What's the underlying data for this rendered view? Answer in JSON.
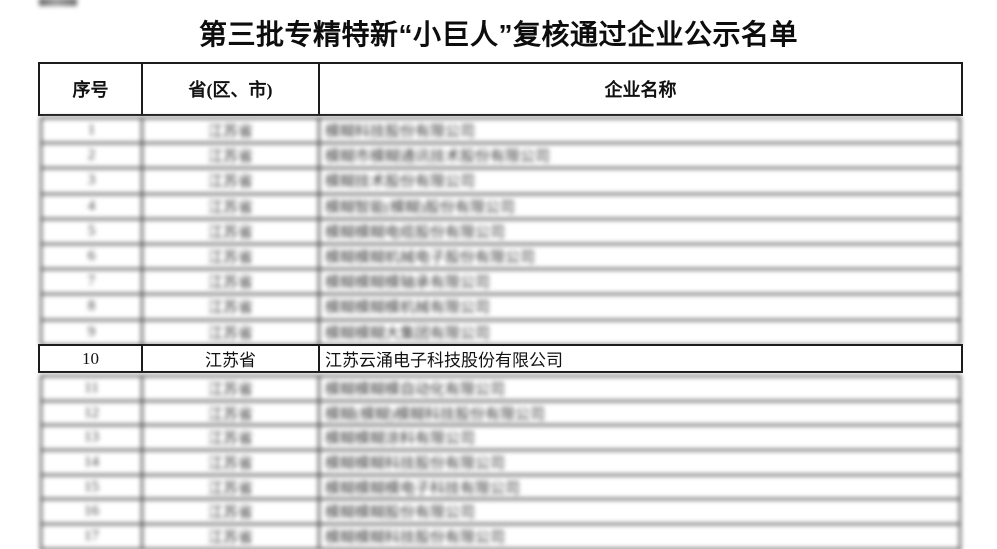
{
  "title": "第三批专精特新“小巨人”复核通过企业公示名单",
  "table": {
    "headers": [
      "序号",
      "省(区、市)",
      "企业名称"
    ],
    "rows": [
      {
        "no": "1",
        "province": "江苏省",
        "company": "模糊科技股份有限公司",
        "blurred": true
      },
      {
        "no": "2",
        "province": "江苏省",
        "company": "模糊市模糊通讯技术股份有限公司",
        "blurred": true
      },
      {
        "no": "3",
        "province": "江苏省",
        "company": "模糊技术股份有限公司",
        "blurred": true
      },
      {
        "no": "4",
        "province": "江苏省",
        "company": "模糊智能(模糊)股份有限公司",
        "blurred": true
      },
      {
        "no": "5",
        "province": "江苏省",
        "company": "模糊模糊电缆股份有限公司",
        "blurred": true
      },
      {
        "no": "6",
        "province": "江苏省",
        "company": "模糊模糊机械电子股份有限公司",
        "blurred": true
      },
      {
        "no": "7",
        "province": "江苏省",
        "company": "模糊模糊模轴承有限公司",
        "blurred": true
      },
      {
        "no": "8",
        "province": "江苏省",
        "company": "模糊模糊模机械有限公司",
        "blurred": true
      },
      {
        "no": "9",
        "province": "江苏省",
        "company": "模糊模糊大集团有限公司",
        "blurred": true
      },
      {
        "no": "10",
        "province": "江苏省",
        "company": "江苏云涌电子科技股份有限公司",
        "blurred": false
      },
      {
        "no": "11",
        "province": "江苏省",
        "company": "模糊模糊模自动化有限公司",
        "blurred": true
      },
      {
        "no": "12",
        "province": "江苏省",
        "company": "模糊(模糊)模糊科技股份有限公司",
        "blurred": true
      },
      {
        "no": "13",
        "province": "江苏省",
        "company": "模糊模糊涂料有限公司",
        "blurred": true
      },
      {
        "no": "14",
        "province": "江苏省",
        "company": "模糊模糊科技股份有限公司",
        "blurred": true
      },
      {
        "no": "15",
        "province": "江苏省",
        "company": "模糊模糊模电子科技有限公司",
        "blurred": true
      },
      {
        "no": "16",
        "province": "江苏省",
        "company": "模糊模糊股份有限公司",
        "blurred": true
      },
      {
        "no": "17",
        "province": "江苏省",
        "company": "模糊模糊科技股份有限公司",
        "blurred": true
      }
    ]
  }
}
